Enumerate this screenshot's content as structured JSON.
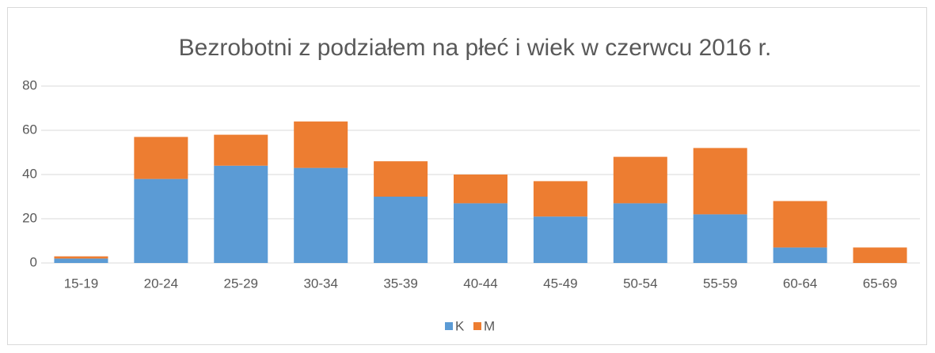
{
  "chart_data": {
    "type": "bar",
    "stacked": true,
    "title": "Bezrobotni z podziałem na płeć i wiek w czerwcu 2016 r.",
    "categories": [
      "15-19",
      "20-24",
      "25-29",
      "30-34",
      "35-39",
      "40-44",
      "45-49",
      "50-54",
      "55-59",
      "60-64",
      "65-69"
    ],
    "series": [
      {
        "name": "K",
        "color": "#5b9bd5",
        "values": [
          2,
          38,
          44,
          43,
          30,
          27,
          21,
          27,
          22,
          7,
          0
        ]
      },
      {
        "name": "M",
        "color": "#ed7d31",
        "values": [
          1,
          19,
          14,
          21,
          16,
          13,
          16,
          21,
          30,
          21,
          7
        ]
      }
    ],
    "ylim": [
      0,
      80
    ],
    "yticks": [
      0,
      20,
      40,
      60,
      80
    ],
    "grid": true,
    "legend": "bottom"
  }
}
